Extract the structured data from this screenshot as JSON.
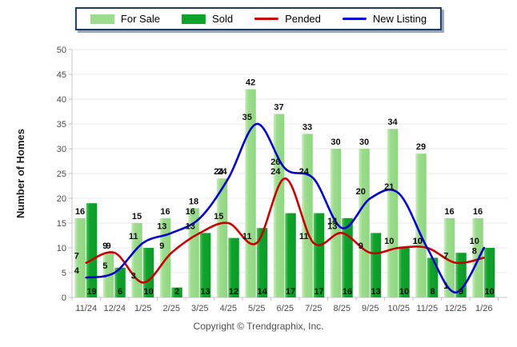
{
  "chart_data": {
    "type": "combo",
    "title": "",
    "ylabel": "Number of Homes",
    "xlabel": "",
    "ylim": [
      0,
      50
    ],
    "ytick_step": 5,
    "grid": true,
    "legend_position": "top-center",
    "categories": [
      "11/24",
      "12/24",
      "1/25",
      "2/25",
      "3/25",
      "4/25",
      "5/25",
      "6/25",
      "7/25",
      "8/25",
      "9/25",
      "10/25",
      "11/25",
      "12/25",
      "1/26"
    ],
    "series": [
      {
        "name": "For Sale",
        "type": "bar",
        "color": "#9CDC8D",
        "color_light": "#CBEEBE",
        "color_dark": "#90D781",
        "values": [
          16,
          9,
          15,
          16,
          18,
          24,
          42,
          37,
          33,
          30,
          30,
          34,
          29,
          16,
          16
        ]
      },
      {
        "name": "Sold",
        "type": "bar",
        "color": "#0FA32C",
        "color_light": "#5DC463",
        "color_dark": "#0B9B27",
        "values": [
          19,
          6,
          10,
          2,
          13,
          12,
          14,
          17,
          17,
          16,
          13,
          10,
          8,
          9,
          10
        ]
      },
      {
        "name": "Pended",
        "type": "line",
        "color": "#C90000",
        "values": [
          7,
          9,
          3,
          9,
          13,
          15,
          11,
          24,
          11,
          13,
          9,
          10,
          10,
          7,
          8
        ]
      },
      {
        "name": "New Listing",
        "type": "line",
        "color": "#0000CE",
        "values": [
          4,
          5,
          11,
          13,
          16,
          24,
          35,
          26,
          24,
          14,
          20,
          21,
          10,
          1,
          10
        ]
      }
    ],
    "colors": {
      "gridline": "#e8e8e8",
      "axis": "#c6c6c6",
      "value_label": "#0d0d0d",
      "tick_label": "#4d4d4d",
      "legend_border": "#1b3a68",
      "legend_shadow": "#9aa6b6",
      "copyright_text": "#4f4f4f"
    },
    "copyright": "Copyright © Trendgraphix, Inc."
  }
}
